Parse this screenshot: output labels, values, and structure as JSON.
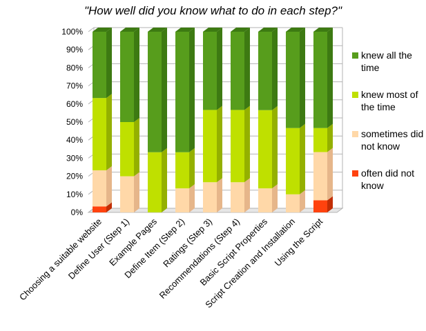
{
  "chart_data": {
    "type": "bar",
    "stacked": true,
    "three_d": true,
    "title": "\"How well did you know what to do in each step?\"",
    "xlabel": "",
    "ylabel": "",
    "ylim": [
      0,
      100
    ],
    "ytick_format": "percent",
    "yticks": [
      "0%",
      "10%",
      "20%",
      "30%",
      "40%",
      "50%",
      "60%",
      "70%",
      "80%",
      "90%",
      "100%"
    ],
    "grid": true,
    "legend_position": "right",
    "categories": [
      "Choosing a suitable website",
      "Define User (Step 1)",
      "Example Pages",
      "Define Item (Step 2)",
      "Ratings (Step 3)",
      "Recommendations (Step 4)",
      "Basic Script Properties",
      "Script Creation and Installation",
      "Using the Script"
    ],
    "series": [
      {
        "name": "often did not know",
        "color": "#ff420e",
        "side_color": "#c22e05",
        "values": [
          3.3,
          0,
          0,
          0,
          0,
          0,
          0,
          0,
          6.7
        ]
      },
      {
        "name": "sometimes did not know",
        "color": "#ffd8a8",
        "side_color": "#e6b68a",
        "values": [
          20,
          20,
          0,
          13.3,
          16.7,
          16.7,
          13.3,
          10,
          26.7
        ]
      },
      {
        "name": "knew most of the time",
        "color": "#bfe000",
        "side_color": "#94b000",
        "values": [
          40,
          30,
          33.3,
          20,
          40,
          40,
          43.3,
          36.7,
          13.3
        ]
      },
      {
        "name": "knew all the time",
        "color": "#579d1c",
        "side_color": "#3d7a12",
        "values": [
          36.7,
          50,
          66.7,
          66.7,
          43.3,
          43.3,
          43.4,
          53.3,
          53.3
        ]
      }
    ],
    "legend_order": [
      "knew all the time",
      "knew most of the time",
      "sometimes did not know",
      "often did not know"
    ]
  }
}
